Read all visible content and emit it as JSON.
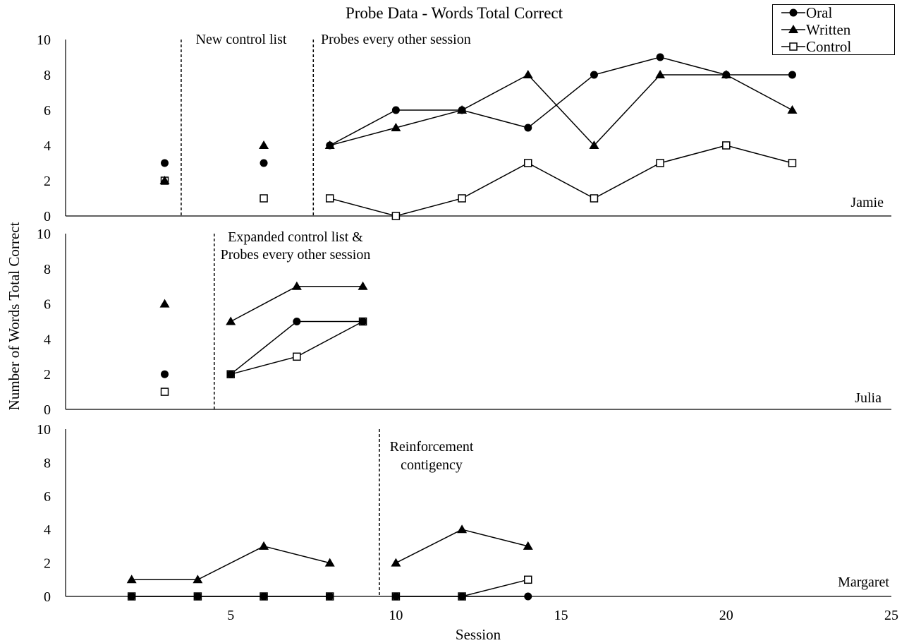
{
  "chart_data": {
    "type": "line",
    "title": "Probe Data - Words Total Correct",
    "xlabel": "Session",
    "ylabel": "Number of Words Total Correct",
    "xlim": [
      0,
      25
    ],
    "x_ticks": [
      "5",
      "10",
      "15",
      "20",
      "25"
    ],
    "y_ticks": [
      "0",
      "2",
      "4",
      "6",
      "8",
      "10"
    ],
    "legend": {
      "placement": "top-right",
      "entries": [
        {
          "name": "Oral",
          "marker": "filled-circle"
        },
        {
          "name": "Written",
          "marker": "filled-triangle"
        },
        {
          "name": "Control",
          "marker": "open-square"
        }
      ]
    },
    "panels": [
      {
        "participant": "Jamie",
        "ylim": [
          0,
          10
        ],
        "phase_lines": [
          3.5,
          7.5
        ],
        "annotations": [
          "New control list",
          "Probes every other session"
        ],
        "series": [
          {
            "name": "Oral",
            "segments": [
              [
                [
                  3,
                  3
                ]
              ],
              [
                [
                  6,
                  3
                ]
              ],
              [
                [
                  8,
                  4
                ],
                [
                  10,
                  6
                ],
                [
                  12,
                  6
                ],
                [
                  14,
                  5
                ],
                [
                  16,
                  8
                ],
                [
                  18,
                  9
                ],
                [
                  20,
                  8
                ],
                [
                  22,
                  8
                ]
              ]
            ]
          },
          {
            "name": "Written",
            "segments": [
              [
                [
                  3,
                  2
                ]
              ],
              [
                [
                  6,
                  4
                ]
              ],
              [
                [
                  8,
                  4
                ],
                [
                  10,
                  5
                ],
                [
                  12,
                  6
                ],
                [
                  14,
                  8
                ],
                [
                  16,
                  4
                ],
                [
                  18,
                  8
                ],
                [
                  20,
                  8
                ],
                [
                  22,
                  6
                ]
              ]
            ]
          },
          {
            "name": "Control",
            "segments": [
              [
                [
                  3,
                  2
                ]
              ],
              [
                [
                  6,
                  1
                ]
              ],
              [
                [
                  8,
                  1
                ],
                [
                  10,
                  0
                ],
                [
                  12,
                  1
                ],
                [
                  14,
                  3
                ],
                [
                  16,
                  1
                ],
                [
                  18,
                  3
                ],
                [
                  20,
                  4
                ],
                [
                  22,
                  3
                ]
              ]
            ]
          }
        ]
      },
      {
        "participant": "Julia",
        "ylim": [
          0,
          10
        ],
        "phase_lines": [
          4.5
        ],
        "annotations": [
          "Expanded control list &",
          "Probes every other session"
        ],
        "series": [
          {
            "name": "Oral",
            "segments": [
              [
                [
                  3,
                  2
                ]
              ],
              [
                [
                  5,
                  2
                ],
                [
                  7,
                  5
                ],
                [
                  9,
                  5
                ]
              ]
            ]
          },
          {
            "name": "Written",
            "segments": [
              [
                [
                  3,
                  6
                ]
              ],
              [
                [
                  5,
                  5
                ],
                [
                  7,
                  7
                ],
                [
                  9,
                  7
                ]
              ]
            ]
          },
          {
            "name": "Control",
            "segments": [
              [
                [
                  3,
                  1
                ]
              ],
              [
                [
                  5,
                  2
                ],
                [
                  7,
                  3
                ],
                [
                  9,
                  5
                ]
              ]
            ]
          }
        ]
      },
      {
        "participant": "Margaret",
        "ylim": [
          0,
          10
        ],
        "phase_lines": [
          9.5
        ],
        "annotations": [
          "Reinforcement",
          "contigency"
        ],
        "series": [
          {
            "name": "Oral",
            "segments": [
              [
                [
                  2,
                  0
                ],
                [
                  4,
                  0
                ],
                [
                  6,
                  0
                ],
                [
                  8,
                  0
                ]
              ],
              [
                [
                  10,
                  0
                ],
                [
                  12,
                  0
                ],
                [
                  14,
                  0
                ]
              ]
            ]
          },
          {
            "name": "Written",
            "segments": [
              [
                [
                  2,
                  1
                ],
                [
                  4,
                  1
                ],
                [
                  6,
                  3
                ],
                [
                  8,
                  2
                ]
              ],
              [
                [
                  10,
                  2
                ],
                [
                  12,
                  4
                ],
                [
                  14,
                  3
                ]
              ]
            ]
          },
          {
            "name": "Control",
            "segments": [
              [
                [
                  2,
                  0
                ],
                [
                  4,
                  0
                ],
                [
                  6,
                  0
                ],
                [
                  8,
                  0
                ]
              ],
              [
                [
                  10,
                  0
                ],
                [
                  12,
                  0
                ],
                [
                  14,
                  1
                ]
              ]
            ]
          }
        ]
      }
    ]
  }
}
